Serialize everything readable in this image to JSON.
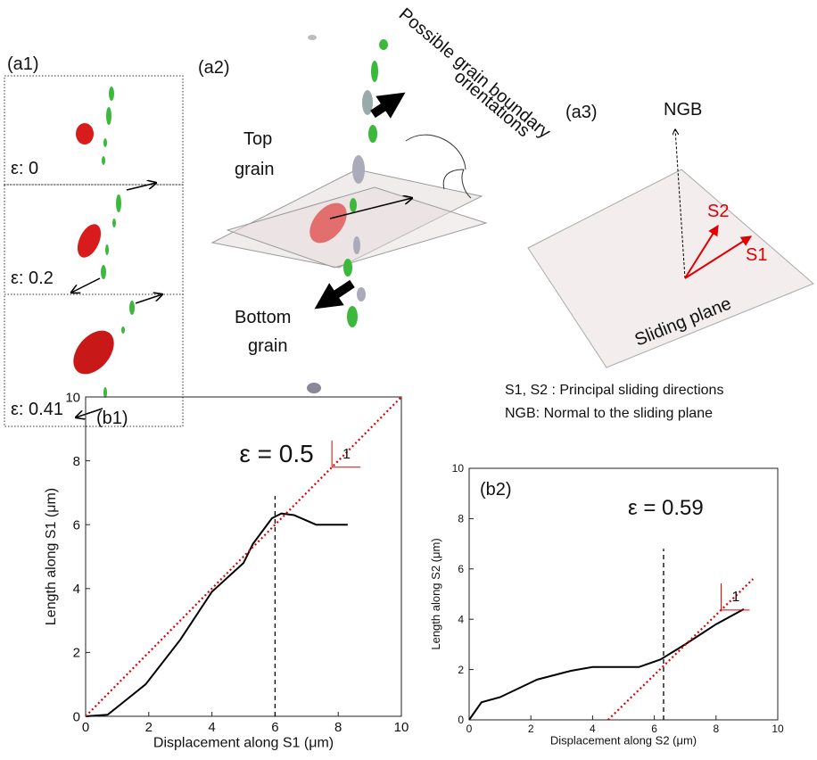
{
  "figure": {
    "a1": {
      "panel": "(a1)",
      "strains": [
        "ε: 0",
        "ε: 0.2",
        "ε: 0.41"
      ]
    },
    "a2": {
      "panel": "(a2)",
      "top": [
        "Top",
        "grain"
      ],
      "bottom": [
        "Bottom",
        "grain"
      ],
      "note": [
        "Possible grain boundary",
        "orientations"
      ]
    },
    "a3": {
      "panel": "(a3)",
      "ngb": "NGB",
      "s1": "S1",
      "s2": "S2",
      "plane": "Sliding plane",
      "caption": [
        "S1, S2 : Principal sliding directions",
        "NGB: Normal to the sliding plane"
      ]
    }
  },
  "chart_data": [
    {
      "type": "line",
      "panel": "(b1)",
      "x_label": "Displacement along S1 (μm)",
      "y_label": "Length along S1 (μm)",
      "xlim": [
        0,
        10
      ],
      "ylim": [
        0,
        10
      ],
      "xticks": [
        0,
        2,
        4,
        6,
        8,
        10
      ],
      "yticks": [
        0,
        2,
        4,
        6,
        8,
        10
      ],
      "series": [
        {
          "color": "#000000",
          "dash": "solid",
          "x": [
            0,
            0.7,
            1.9,
            3,
            4,
            5,
            5.3,
            5.9,
            6.2,
            6.6,
            7.3,
            8.3
          ],
          "values": [
            0,
            0.05,
            1,
            2.4,
            3.9,
            4.8,
            5.4,
            6.2,
            6.35,
            6.3,
            6,
            6
          ]
        },
        {
          "color": "#e00000",
          "dash": "dotted",
          "x": [
            0,
            10
          ],
          "values": [
            0,
            10
          ]
        }
      ],
      "vline_x": 6,
      "vline_top": 6.9,
      "annotation": "ε = 0.5",
      "slope_label": "1"
    },
    {
      "type": "line",
      "panel": "(b2)",
      "x_label": "Displacement along S2 (μm)",
      "y_label": "Length along S2 (μm)",
      "xlim": [
        0,
        10
      ],
      "ylim": [
        0,
        10
      ],
      "xticks": [
        0,
        2,
        4,
        6,
        8,
        10
      ],
      "yticks": [
        0,
        2,
        4,
        6,
        8,
        10
      ],
      "series": [
        {
          "color": "#000000",
          "dash": "solid",
          "x": [
            0,
            0.4,
            1,
            2.2,
            3.3,
            4,
            5.5,
            6.2,
            7,
            8,
            8.9
          ],
          "values": [
            0,
            0.7,
            0.9,
            1.6,
            1.95,
            2.1,
            2.1,
            2.4,
            3,
            3.8,
            4.4
          ]
        },
        {
          "color": "#e00000",
          "dash": "dotted",
          "x": [
            4.5,
            9.2
          ],
          "values": [
            0,
            5.6
          ]
        }
      ],
      "vline_x": 6.3,
      "vline_top": 6.8,
      "annotation": "ε = 0.59",
      "slope_label": "1"
    }
  ]
}
